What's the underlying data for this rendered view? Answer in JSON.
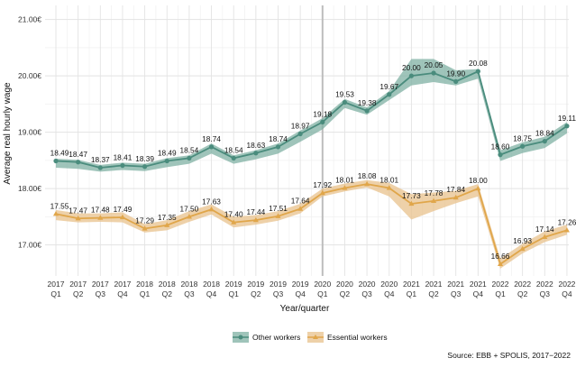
{
  "chart_data": {
    "type": "line",
    "title": "",
    "xlabel": "Year/quarter",
    "ylabel": "Average real hourly wage",
    "y_ticks": [
      "17.00€",
      "18.00€",
      "19.00€",
      "20.00€",
      "21.00€"
    ],
    "y_tick_values": [
      17,
      18,
      19,
      20,
      21
    ],
    "ylim": [
      16.45,
      21.25
    ],
    "grid": true,
    "legend_position": "bottom-center",
    "reference_line_at": "2020 Q1",
    "source": "Source: EBB + SPOLIS, 2017−2022",
    "categories": [
      {
        "year": "2017",
        "quarter": "Q1"
      },
      {
        "year": "2017",
        "quarter": "Q2"
      },
      {
        "year": "2017",
        "quarter": "Q3"
      },
      {
        "year": "2017",
        "quarter": "Q4"
      },
      {
        "year": "2018",
        "quarter": "Q1"
      },
      {
        "year": "2018",
        "quarter": "Q2"
      },
      {
        "year": "2018",
        "quarter": "Q3"
      },
      {
        "year": "2018",
        "quarter": "Q4"
      },
      {
        "year": "2019",
        "quarter": "Q1"
      },
      {
        "year": "2019",
        "quarter": "Q2"
      },
      {
        "year": "2019",
        "quarter": "Q3"
      },
      {
        "year": "2019",
        "quarter": "Q4"
      },
      {
        "year": "2020",
        "quarter": "Q1"
      },
      {
        "year": "2020",
        "quarter": "Q2"
      },
      {
        "year": "2020",
        "quarter": "Q3"
      },
      {
        "year": "2020",
        "quarter": "Q4"
      },
      {
        "year": "2021",
        "quarter": "Q1"
      },
      {
        "year": "2021",
        "quarter": "Q2"
      },
      {
        "year": "2021",
        "quarter": "Q3"
      },
      {
        "year": "2021",
        "quarter": "Q4"
      },
      {
        "year": "2022",
        "quarter": "Q1"
      },
      {
        "year": "2022",
        "quarter": "Q2"
      },
      {
        "year": "2022",
        "quarter": "Q3"
      },
      {
        "year": "2022",
        "quarter": "Q4"
      }
    ],
    "series": [
      {
        "name": "Other workers",
        "color": "#4a8c7d",
        "band_color": "#7fb0a3",
        "marker": "circle",
        "values": [
          18.49,
          18.47,
          18.37,
          18.41,
          18.39,
          18.49,
          18.54,
          18.74,
          18.54,
          18.63,
          18.74,
          18.97,
          19.18,
          19.53,
          19.38,
          19.67,
          20.0,
          20.05,
          19.9,
          20.08,
          18.6,
          18.75,
          18.84,
          19.11
        ],
        "labels": [
          "18.49",
          "18.47",
          "18.37",
          "18.41",
          "18.39",
          "18.49",
          "18.54",
          "18.74",
          "18.54",
          "18.63",
          "18.74",
          "18.97",
          "19.18",
          "19.53",
          "19.38",
          "19.67",
          "20.00",
          "20.05",
          "19.90",
          "20.08",
          "18.60",
          "18.75",
          "18.84",
          "19.11"
        ],
        "band_low": [
          18.37,
          18.35,
          18.3,
          18.33,
          18.31,
          18.38,
          18.44,
          18.62,
          18.44,
          18.52,
          18.62,
          18.83,
          19.05,
          19.43,
          19.31,
          19.57,
          19.83,
          19.89,
          19.83,
          19.95,
          18.49,
          18.63,
          18.72,
          18.98
        ],
        "band_high": [
          18.53,
          18.51,
          18.42,
          18.46,
          18.44,
          18.54,
          18.59,
          18.8,
          18.59,
          18.68,
          18.8,
          19.03,
          19.25,
          19.59,
          19.44,
          19.73,
          20.3,
          20.3,
          20.1,
          20.12,
          18.68,
          18.82,
          18.92,
          19.18
        ]
      },
      {
        "name": "Essential workers",
        "color": "#e0a64a",
        "band_color": "#e8c28c",
        "marker": "triangle",
        "values": [
          17.55,
          17.47,
          17.48,
          17.49,
          17.29,
          17.35,
          17.5,
          17.63,
          17.4,
          17.44,
          17.51,
          17.64,
          17.92,
          18.01,
          18.08,
          18.01,
          17.73,
          17.78,
          17.84,
          18.0,
          16.66,
          16.93,
          17.14,
          17.26
        ],
        "labels": [
          "17.55",
          "17.47",
          "17.48",
          "17.49",
          "17.29",
          "17.35",
          "17.50",
          "17.63",
          "17.40",
          "17.44",
          "17.51",
          "17.64",
          "17.92",
          "18.01",
          "18.08",
          "18.01",
          "17.73",
          "17.78",
          "17.84",
          "18.00",
          "16.66",
          "16.93",
          "17.14",
          "17.26"
        ],
        "band_low": [
          17.44,
          17.4,
          17.41,
          17.4,
          17.22,
          17.26,
          17.41,
          17.54,
          17.31,
          17.36,
          17.43,
          17.56,
          17.86,
          17.95,
          18.02,
          17.86,
          17.45,
          17.6,
          17.74,
          17.86,
          16.58,
          16.85,
          17.05,
          17.18
        ],
        "band_high": [
          17.62,
          17.56,
          17.56,
          17.58,
          17.37,
          17.44,
          17.6,
          17.72,
          17.5,
          17.53,
          17.6,
          17.73,
          18.0,
          18.09,
          18.15,
          18.1,
          17.9,
          17.93,
          17.96,
          18.08,
          16.76,
          17.02,
          17.24,
          17.36
        ]
      }
    ]
  }
}
